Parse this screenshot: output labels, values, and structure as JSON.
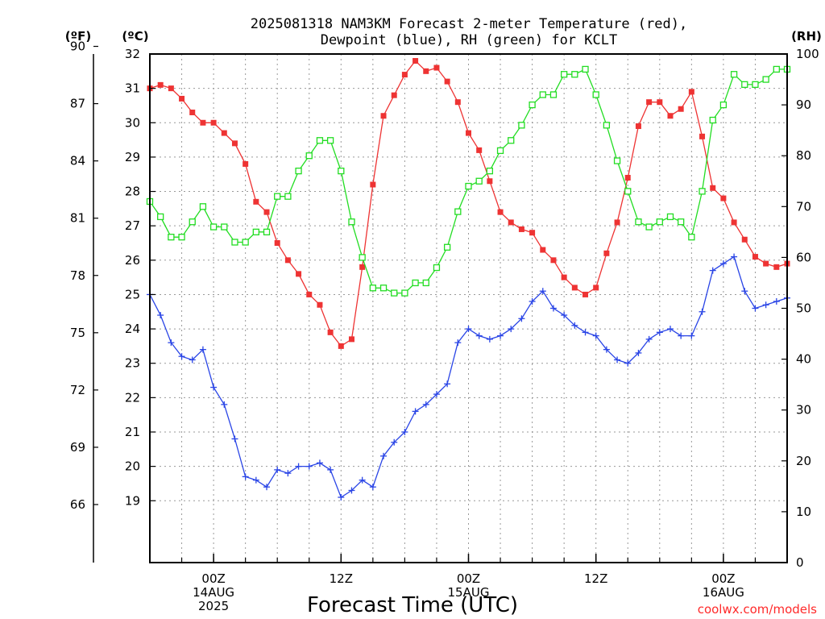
{
  "chart_data": {
    "type": "line",
    "title": [
      "2025081318 NAM3KM Forecast 2-meter Temperature (red),",
      "Dewpoint (blue), RH (green) for KCLT"
    ],
    "xlabel": "Forecast Time (UTC)",
    "credit": "coolwx.com/models",
    "units": {
      "f": "(ºF)",
      "c": "(ºC)",
      "rh": "(RH)"
    },
    "x_ticks": [
      {
        "hour": 6,
        "lines": [
          "00Z",
          "14AUG",
          "2025"
        ]
      },
      {
        "hour": 18,
        "lines": [
          "12Z"
        ]
      },
      {
        "hour": 30,
        "lines": [
          "00Z",
          "15AUG"
        ]
      },
      {
        "hour": 42,
        "lines": [
          "12Z"
        ]
      },
      {
        "hour": 54,
        "lines": [
          "00Z",
          "16AUG"
        ]
      }
    ],
    "x_range_hours": [
      0,
      60
    ],
    "c_axis": {
      "ylim": [
        17.2,
        32.0
      ],
      "ticks": [
        "19",
        "20",
        "21",
        "22",
        "23",
        "24",
        "25",
        "26",
        "27",
        "28",
        "29",
        "30",
        "31",
        "32"
      ]
    },
    "f_axis": {
      "ticks": [
        "66",
        "69",
        "72",
        "75",
        "78",
        "81",
        "84",
        "87",
        "90"
      ]
    },
    "rh_axis": {
      "ylim": [
        0,
        100
      ],
      "ticks": [
        "0",
        "10",
        "20",
        "30",
        "40",
        "50",
        "60",
        "70",
        "80",
        "90",
        "100"
      ]
    },
    "grid": true,
    "series": [
      {
        "name": "Temperature",
        "color": "#ee3333",
        "marker": "filled-square",
        "axis": "c",
        "values": [
          31.0,
          31.1,
          31.0,
          30.7,
          30.3,
          30.0,
          30.0,
          29.7,
          29.4,
          28.8,
          27.7,
          27.4,
          26.5,
          26.0,
          25.6,
          25.0,
          24.7,
          23.9,
          23.5,
          23.7,
          25.8,
          28.2,
          30.2,
          30.8,
          31.4,
          31.8,
          31.5,
          31.6,
          31.2,
          30.6,
          29.7,
          29.2,
          28.3,
          27.4,
          27.1,
          26.9,
          26.8,
          26.3,
          26.0,
          25.5,
          25.2,
          25.0,
          25.2,
          26.2,
          27.1,
          28.4,
          29.9,
          30.6,
          30.6,
          30.2,
          30.4,
          30.9,
          29.6,
          28.1,
          27.8,
          27.1,
          26.6,
          26.1,
          25.9,
          25.8,
          25.9
        ]
      },
      {
        "name": "Dewpoint",
        "color": "#2a45e6",
        "marker": "plus",
        "axis": "c",
        "values": [
          25.0,
          24.4,
          23.6,
          23.2,
          23.1,
          23.4,
          22.3,
          21.8,
          20.8,
          19.7,
          19.6,
          19.4,
          19.9,
          19.8,
          20.0,
          20.0,
          20.1,
          19.9,
          19.1,
          19.3,
          19.6,
          19.4,
          20.3,
          20.7,
          21.0,
          21.6,
          21.8,
          22.1,
          22.4,
          23.6,
          24.0,
          23.8,
          23.7,
          23.8,
          24.0,
          24.3,
          24.8,
          25.1,
          24.6,
          24.4,
          24.1,
          23.9,
          23.8,
          23.4,
          23.1,
          23.0,
          23.3,
          23.7,
          23.9,
          24.0,
          23.8,
          23.8,
          24.5,
          25.7,
          25.9,
          26.1,
          25.1,
          24.6,
          24.7,
          24.8,
          24.9
        ]
      },
      {
        "name": "RH",
        "color": "#22dd22",
        "marker": "open-square",
        "axis": "rh",
        "values": [
          71,
          68,
          64,
          64,
          67,
          70,
          66,
          66,
          63,
          63,
          65,
          65,
          72,
          72,
          77,
          80,
          83,
          83,
          77,
          67,
          60,
          54,
          54,
          53,
          53,
          55,
          55,
          58,
          62,
          69,
          74,
          75,
          77,
          81,
          83,
          86,
          90,
          92,
          92,
          96,
          96,
          97,
          92,
          86,
          79,
          73,
          67,
          66,
          67,
          68,
          67,
          64,
          73,
          87,
          90,
          96,
          94,
          94,
          95,
          97,
          97
        ]
      }
    ]
  }
}
